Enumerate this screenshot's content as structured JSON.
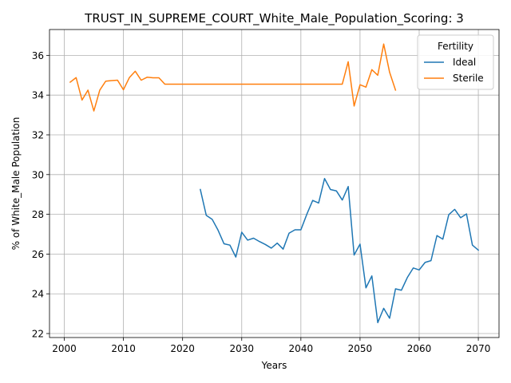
{
  "chart_data": {
    "type": "line",
    "title": "TRUST_IN_SUPREME_COURT_White_Male_Population_Scoring: 3",
    "xlabel": "Years",
    "ylabel": "% of White_Male Population",
    "xlim": [
      1997.5,
      2073.5
    ],
    "ylim": [
      21.8,
      37.3
    ],
    "xticks": [
      2000,
      2010,
      2020,
      2030,
      2040,
      2050,
      2060,
      2070
    ],
    "yticks": [
      22,
      24,
      26,
      28,
      30,
      32,
      34,
      36
    ],
    "grid": true,
    "legend": {
      "title": "Fertility",
      "placement": "top-right"
    },
    "series": [
      {
        "name": "Ideal",
        "color": "#1f77b4",
        "x": [
          2023,
          2024,
          2025,
          2026,
          2027,
          2028,
          2029,
          2030,
          2031,
          2032,
          2033,
          2034,
          2035,
          2036,
          2037,
          2038,
          2039,
          2040,
          2041,
          2042,
          2043,
          2044,
          2045,
          2046,
          2047,
          2048,
          2049,
          2050,
          2051,
          2052,
          2053,
          2054,
          2055,
          2056,
          2057,
          2058,
          2059,
          2060,
          2061,
          2062,
          2063,
          2064,
          2065,
          2066,
          2067,
          2068,
          2069,
          2070
        ],
        "y": [
          29.25,
          27.95,
          27.75,
          27.2,
          26.52,
          26.45,
          25.85,
          27.1,
          26.7,
          26.8,
          26.63,
          26.48,
          26.3,
          26.55,
          26.25,
          27.05,
          27.22,
          27.22,
          28.0,
          28.7,
          28.57,
          29.8,
          29.25,
          29.18,
          28.72,
          29.4,
          25.95,
          26.5,
          24.3,
          24.9,
          22.55,
          23.27,
          22.77,
          24.25,
          24.18,
          24.82,
          25.3,
          25.2,
          25.58,
          25.67,
          26.93,
          26.75,
          27.98,
          28.25,
          27.83,
          28.02,
          26.45,
          26.2
        ]
      },
      {
        "name": "Sterile",
        "color": "#ff7f0e",
        "x": [
          2001,
          2002,
          2003,
          2004,
          2005,
          2006,
          2007,
          2008,
          2009,
          2010,
          2011,
          2012,
          2013,
          2014,
          2015,
          2016,
          2017,
          2018,
          2019,
          2020,
          2021,
          2022,
          2023,
          2024,
          2025,
          2026,
          2027,
          2028,
          2029,
          2030,
          2031,
          2032,
          2033,
          2034,
          2035,
          2036,
          2037,
          2038,
          2039,
          2040,
          2041,
          2042,
          2043,
          2044,
          2045,
          2046,
          2047,
          2048,
          2049,
          2050,
          2051,
          2052,
          2053,
          2054,
          2055,
          2056
        ],
        "y": [
          34.65,
          34.88,
          33.75,
          34.25,
          33.2,
          34.25,
          34.7,
          34.73,
          34.75,
          34.27,
          34.88,
          35.2,
          34.75,
          34.9,
          34.87,
          34.87,
          34.55,
          34.55,
          34.55,
          34.55,
          34.55,
          34.55,
          34.55,
          34.55,
          34.55,
          34.55,
          34.55,
          34.55,
          34.55,
          34.55,
          34.55,
          34.55,
          34.55,
          34.55,
          34.55,
          34.55,
          34.55,
          34.55,
          34.55,
          34.55,
          34.55,
          34.55,
          34.55,
          34.55,
          34.55,
          34.55,
          34.55,
          35.68,
          33.45,
          34.52,
          34.4,
          35.28,
          35.0,
          36.57,
          35.15,
          34.25
        ]
      }
    ]
  }
}
